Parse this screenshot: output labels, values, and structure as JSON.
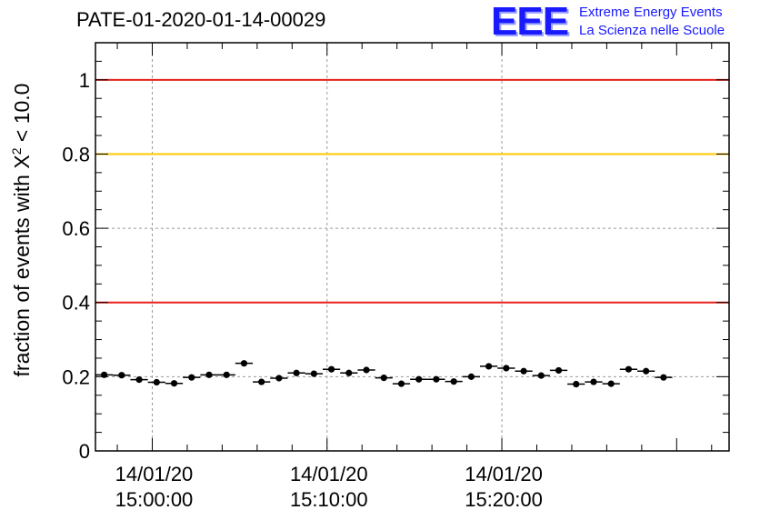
{
  "title": "PATE-01-2020-01-14-00029",
  "logo": {
    "mark": "EEE",
    "line1": "Extreme Energy Events",
    "line2": "La Scienza nelle Scuole"
  },
  "colors": {
    "red_line": "#e8201c",
    "yellow_line": "#ffc800",
    "logo_blue": "#1a1aff",
    "grid": "#999999",
    "points": "#000000"
  },
  "chart_data": {
    "type": "scatter",
    "title": "PATE-01-2020-01-14-00029",
    "ylabel_parts": {
      "pre": "fraction of events with X",
      "sup": "2",
      "post": " < 10.0"
    },
    "xlabel": "",
    "ylim": [
      0,
      1.1
    ],
    "y_ticks": [
      0,
      0.2,
      0.4,
      0.6,
      0.8,
      1
    ],
    "y_tick_labels": [
      "0",
      "0.2",
      "0.4",
      "0.6",
      "0.8",
      "1"
    ],
    "x_time_range": [
      "14:56:45",
      "15:33:00"
    ],
    "x_ticks": [
      {
        "time": "15:00:00",
        "label_date": "14/01/20",
        "label_time": "15:00:00"
      },
      {
        "time": "15:10:00",
        "label_date": "14/01/20",
        "label_time": "15:10:00"
      },
      {
        "time": "15:20:00",
        "label_date": "14/01/20",
        "label_time": "15:20:00"
      }
    ],
    "grid": true,
    "reference_lines": [
      {
        "y": 1.0,
        "color": "red"
      },
      {
        "y": 0.8,
        "color": "yellow"
      },
      {
        "y": 0.4,
        "color": "red"
      }
    ],
    "series": [
      {
        "bin_minutes": 1,
        "first_bin_start": "14:56:45",
        "y_error": 0.008,
        "points": [
          {
            "t": "14:57:15",
            "y": 0.205
          },
          {
            "t": "14:58:15",
            "y": 0.204
          },
          {
            "t": "14:59:15",
            "y": 0.192
          },
          {
            "t": "15:00:15",
            "y": 0.185
          },
          {
            "t": "15:01:15",
            "y": 0.182
          },
          {
            "t": "15:02:15",
            "y": 0.198
          },
          {
            "t": "15:03:15",
            "y": 0.205
          },
          {
            "t": "15:04:15",
            "y": 0.205
          },
          {
            "t": "15:05:15",
            "y": 0.236
          },
          {
            "t": "15:06:15",
            "y": 0.186
          },
          {
            "t": "15:07:15",
            "y": 0.196
          },
          {
            "t": "15:08:15",
            "y": 0.21
          },
          {
            "t": "15:09:15",
            "y": 0.208
          },
          {
            "t": "15:10:15",
            "y": 0.22
          },
          {
            "t": "15:11:15",
            "y": 0.21
          },
          {
            "t": "15:12:15",
            "y": 0.218
          },
          {
            "t": "15:13:15",
            "y": 0.197
          },
          {
            "t": "15:14:15",
            "y": 0.181
          },
          {
            "t": "15:15:15",
            "y": 0.193
          },
          {
            "t": "15:16:15",
            "y": 0.193
          },
          {
            "t": "15:17:15",
            "y": 0.187
          },
          {
            "t": "15:18:15",
            "y": 0.2
          },
          {
            "t": "15:19:15",
            "y": 0.228
          },
          {
            "t": "15:20:15",
            "y": 0.223
          },
          {
            "t": "15:21:15",
            "y": 0.215
          },
          {
            "t": "15:22:15",
            "y": 0.203
          },
          {
            "t": "15:23:15",
            "y": 0.217
          },
          {
            "t": "15:24:15",
            "y": 0.18
          },
          {
            "t": "15:25:15",
            "y": 0.186
          },
          {
            "t": "15:26:15",
            "y": 0.181
          },
          {
            "t": "15:27:15",
            "y": 0.22
          },
          {
            "t": "15:28:15",
            "y": 0.215
          },
          {
            "t": "15:29:15",
            "y": 0.198
          }
        ]
      }
    ]
  }
}
